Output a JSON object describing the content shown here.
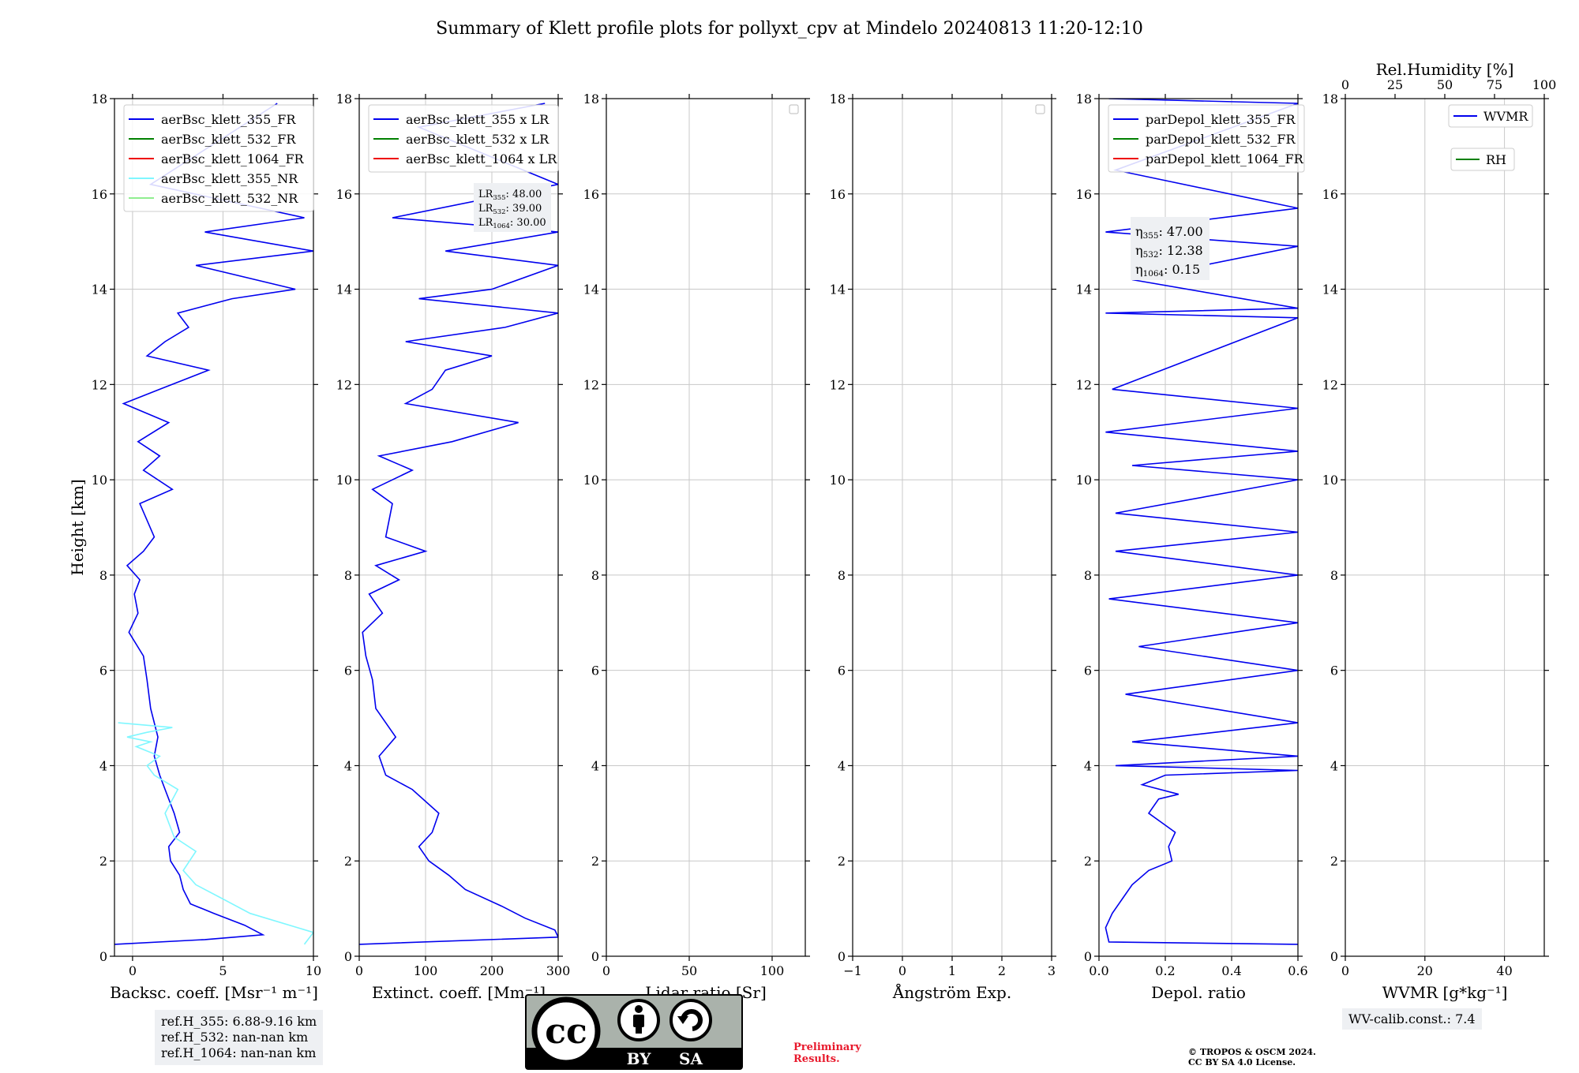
{
  "figure_title": "Summary of Klett profile plots for pollyxt_cpv at Mindelo 20240813 11:20-12:10",
  "colors": {
    "c355": "#0000ee",
    "c532": "#008000",
    "c1064": "#ee0000",
    "c355nr": "#7ff7ff",
    "c532nr": "#90ee90"
  },
  "chart_data": [
    {
      "type": "line",
      "id": "backscatter",
      "xlabel": "Backsc. coeff. [Msr⁻¹ m⁻¹]",
      "ylabel": "Height [km]",
      "xlim": [
        -1,
        10
      ],
      "ylim": [
        0,
        18
      ],
      "xticks": [
        0,
        5,
        10
      ],
      "yticks": [
        0,
        2,
        4,
        6,
        8,
        10,
        12,
        14,
        16,
        18
      ],
      "grid": true,
      "legend_position": "top-left",
      "legend": [
        "aerBsc_klett_355_FR",
        "aerBsc_klett_532_FR",
        "aerBsc_klett_1064_FR",
        "aerBsc_klett_355_NR",
        "aerBsc_klett_532_NR"
      ],
      "series": [
        {
          "name": "aerBsc_klett_355_FR",
          "x": [
            -1,
            4,
            7.2,
            6.2,
            4.5,
            3.2,
            2.8,
            2.6,
            2.1,
            2.0,
            2.6,
            2.3,
            1.8,
            1.5,
            1.2,
            1.4,
            1.0,
            0.8,
            0.6,
            -0.2,
            0.3,
            0.1,
            0.4,
            -0.3,
            0.6,
            1.2,
            0.4,
            2.2,
            0.6,
            1.5,
            0.3,
            2.0,
            -0.5,
            1.5,
            4.2,
            0.8,
            1.8,
            3.1,
            2.5,
            5.5,
            9.0,
            3.5,
            10.0,
            4.0,
            9.5,
            1.0,
            8.0
          ],
          "y": [
            0.25,
            0.35,
            0.45,
            0.65,
            0.9,
            1.1,
            1.4,
            1.7,
            2.0,
            2.3,
            2.6,
            3.0,
            3.5,
            3.8,
            4.2,
            4.6,
            5.2,
            5.8,
            6.3,
            6.8,
            7.2,
            7.6,
            7.9,
            8.2,
            8.5,
            8.8,
            9.5,
            9.8,
            10.2,
            10.5,
            10.8,
            11.2,
            11.6,
            11.9,
            12.3,
            12.6,
            12.9,
            13.2,
            13.5,
            13.8,
            14.0,
            14.5,
            14.8,
            15.2,
            15.5,
            16.2,
            17.9
          ]
        },
        {
          "name": "aerBsc_klett_355_NR",
          "x": [
            9.5,
            10,
            6.5,
            5.0,
            3.5,
            2.8,
            3.5,
            2.3,
            1.8,
            2.5,
            1.2,
            0.8,
            1.5,
            0.2,
            1.0,
            -0.3,
            0.8,
            2.2,
            -0.8
          ],
          "y": [
            0.25,
            0.5,
            0.9,
            1.2,
            1.5,
            1.8,
            2.2,
            2.5,
            3.0,
            3.5,
            3.8,
            4.0,
            4.2,
            4.4,
            4.5,
            4.6,
            4.7,
            4.8,
            4.9
          ]
        }
      ]
    },
    {
      "type": "line",
      "id": "extinction",
      "xlabel": "Extinct. coeff. [Mm⁻¹]",
      "xlim": [
        0,
        300
      ],
      "ylim": [
        0,
        18
      ],
      "xticks": [
        0,
        100,
        200,
        300
      ],
      "yticks": [
        0,
        2,
        4,
        6,
        8,
        10,
        12,
        14,
        16,
        18
      ],
      "grid": true,
      "legend_position": "top-left",
      "legend": [
        "aerBsc_klett_355 x LR",
        "aerBsc_klett_532 x LR",
        "aerBsc_klett_1064 x LR"
      ],
      "annotation": [
        "LR",
        "LR",
        "LR"
      ],
      "annotation_subs": [
        "355",
        "532",
        "1064"
      ],
      "annotation_values": [
        ": 48.00",
        ": 39.00",
        ": 30.00"
      ],
      "series": [
        {
          "name": "aerBsc_klett_355 x LR",
          "x": [
            0,
            300,
            295,
            250,
            215,
            160,
            135,
            105,
            90,
            110,
            120,
            80,
            40,
            30,
            55,
            25,
            20,
            10,
            5,
            35,
            15,
            60,
            25,
            100,
            40,
            50,
            20,
            80,
            30,
            140,
            240,
            70,
            110,
            130,
            200,
            70,
            220,
            300,
            90,
            200,
            300,
            130,
            300,
            50,
            300,
            90,
            280
          ],
          "y": [
            0.25,
            0.4,
            0.55,
            0.8,
            1.05,
            1.4,
            1.7,
            2.0,
            2.3,
            2.6,
            3.0,
            3.5,
            3.8,
            4.2,
            4.6,
            5.2,
            5.8,
            6.3,
            6.8,
            7.2,
            7.6,
            7.9,
            8.2,
            8.5,
            8.8,
            9.5,
            9.8,
            10.2,
            10.5,
            10.8,
            11.2,
            11.6,
            11.9,
            12.3,
            12.6,
            12.9,
            13.2,
            13.5,
            13.8,
            14.0,
            14.5,
            14.8,
            15.2,
            15.5,
            16.2,
            17.4,
            17.9
          ]
        }
      ]
    },
    {
      "type": "line",
      "id": "lidar_ratio",
      "xlabel": "Lidar ratio [Sr]",
      "xlim": [
        0,
        120
      ],
      "ylim": [
        0,
        18
      ],
      "xticks": [
        0,
        50,
        100
      ],
      "yticks": [
        0,
        2,
        4,
        6,
        8,
        10,
        12,
        14,
        16,
        18
      ],
      "grid": true,
      "legend_position": "top-right",
      "series": []
    },
    {
      "type": "line",
      "id": "angstrom",
      "xlabel": "Ångström Exp.",
      "xlim": [
        -1,
        3
      ],
      "ylim": [
        0,
        18
      ],
      "xticks": [
        -1,
        0,
        1,
        2,
        3
      ],
      "yticks": [
        0,
        2,
        4,
        6,
        8,
        10,
        12,
        14,
        16,
        18
      ],
      "grid": true,
      "legend_position": "top-right",
      "series": []
    },
    {
      "type": "line",
      "id": "depol",
      "xlabel": "Depol. ratio",
      "xlim": [
        0,
        0.6
      ],
      "ylim": [
        0,
        18
      ],
      "xticks": [
        0.0,
        0.2,
        0.4,
        0.6
      ],
      "yticks": [
        0,
        2,
        4,
        6,
        8,
        10,
        12,
        14,
        16,
        18
      ],
      "grid": true,
      "legend_position": "top-left",
      "legend": [
        "parDepol_klett_355_FR",
        "parDepol_klett_532_FR",
        "parDepol_klett_1064_FR"
      ],
      "annotation": [
        "η",
        "η",
        "η"
      ],
      "annotation_subs": [
        "355",
        "532",
        "1064"
      ],
      "annotation_values": [
        ": 47.00",
        ": 12.38",
        ": 0.15"
      ],
      "series": [
        {
          "name": "parDepol_klett_355_FR",
          "x": [
            0.6,
            0.03,
            0.02,
            0.04,
            0.07,
            0.1,
            0.15,
            0.22,
            0.21,
            0.23,
            0.19,
            0.15,
            0.18,
            0.24,
            0.13,
            0.2,
            0.6,
            0.05,
            0.6,
            0.1,
            0.6,
            0.08,
            0.6,
            0.12,
            0.6,
            0.03,
            0.6,
            0.05,
            0.6,
            0.05,
            0.6,
            0.1,
            0.6,
            0.02,
            0.6,
            0.04,
            0.6,
            0.02,
            0.6,
            0.1,
            0.6,
            0.02,
            0.6,
            0.05,
            0.6,
            0.03
          ],
          "y": [
            0.25,
            0.3,
            0.6,
            0.9,
            1.2,
            1.5,
            1.8,
            2.0,
            2.3,
            2.6,
            2.8,
            3.0,
            3.3,
            3.4,
            3.6,
            3.8,
            3.9,
            4.0,
            4.2,
            4.5,
            4.9,
            5.5,
            6.0,
            6.5,
            7.0,
            7.5,
            8.0,
            8.5,
            8.9,
            9.3,
            10.0,
            10.3,
            10.6,
            11.0,
            11.5,
            11.9,
            13.4,
            13.5,
            13.6,
            14.2,
            14.9,
            15.2,
            15.7,
            16.5,
            17.9,
            18.0
          ]
        }
      ]
    },
    {
      "type": "line",
      "id": "wvmr",
      "xlabel": "WVMR [g*kg⁻¹]",
      "xlim": [
        0,
        50
      ],
      "ylim": [
        0,
        18
      ],
      "xticks": [
        0,
        20,
        40
      ],
      "yticks": [
        0,
        2,
        4,
        6,
        8,
        10,
        12,
        14,
        16,
        18
      ],
      "top_axis_label": "Rel.Humidity [%]",
      "top_xlim": [
        0,
        100
      ],
      "top_xticks": [
        0,
        25,
        50,
        75,
        100
      ],
      "grid": true,
      "legend_position": "top-right",
      "legend": [
        "WVMR",
        "RH"
      ],
      "series": []
    }
  ],
  "ref_heights": [
    "ref.H_355: 6.88-9.16 km",
    "ref.H_532: nan-nan km",
    "ref.H_1064: nan-nan km"
  ],
  "wv_calib": "WV-calib.const.: 7.4",
  "preliminary": [
    "Preliminary",
    "Results."
  ],
  "copyright": [
    "© TROPOS & OSCM 2024.",
    "CC BY SA 4.0 License."
  ],
  "license_badge": {
    "cc": "cc",
    "by": "BY",
    "sa": "SA"
  }
}
